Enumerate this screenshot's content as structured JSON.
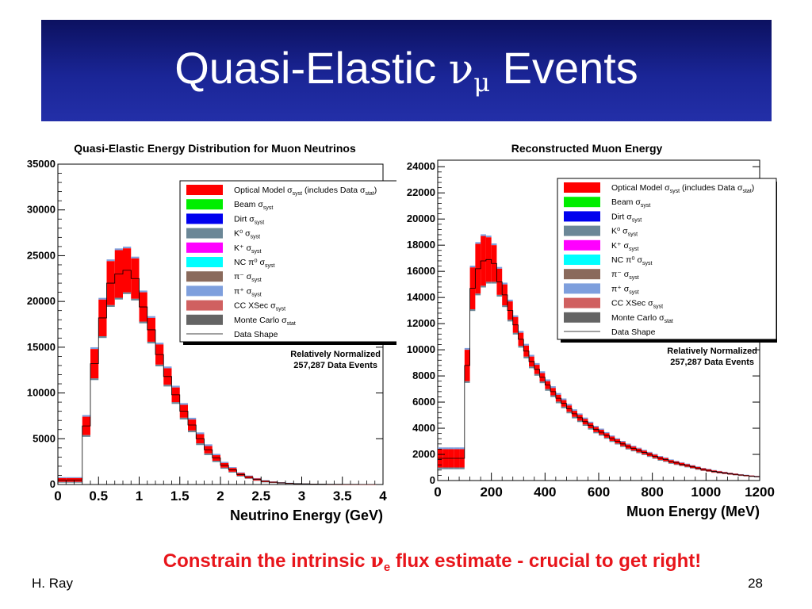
{
  "slide": {
    "title_prefix": "Quasi-Elastic ",
    "title_nu": "ν",
    "title_mu": "μ",
    "title_suffix": " Events",
    "caption_prefix": "Constrain the intrinsic ",
    "caption_nu": "ν",
    "caption_e": "e",
    "caption_suffix": " flux estimate - crucial to get right!",
    "author": "H. Ray",
    "page_number": "28",
    "colors": {
      "title_bar": "#1a2596",
      "caption": "#e8151b"
    }
  },
  "legend": {
    "entries": [
      {
        "label": "Optical Model σ",
        "sub": "syst",
        "extra": " (includes Data σ",
        "extra_sub": "stat",
        "extra_end": ")",
        "color": "#ff0000"
      },
      {
        "label": "Beam σ",
        "sub": "syst",
        "color": "#00ee00"
      },
      {
        "label": "Dirt σ",
        "sub": "syst",
        "color": "#0000ee"
      },
      {
        "label": "K⁰ σ",
        "sub": "syst",
        "color": "#6b8797"
      },
      {
        "label": "K⁺ σ",
        "sub": "syst",
        "color": "#ff00ff"
      },
      {
        "label": "NC π⁰ σ",
        "sub": "syst",
        "color": "#00ffff"
      },
      {
        "label": "π⁻ σ",
        "sub": "syst",
        "color": "#8a6a5c"
      },
      {
        "label": "π⁺ σ",
        "sub": "syst",
        "color": "#7e9fdd"
      },
      {
        "label": "CC XSec σ",
        "sub": "syst",
        "color": "#d06060"
      },
      {
        "label": "Monte Carlo σ",
        "sub": "stat",
        "color": "#646464"
      },
      {
        "label": "Data Shape",
        "sub": "",
        "color": "line"
      }
    ],
    "norm_line1": "Relatively Normalized",
    "norm_line2": "257,287 Data Events"
  },
  "chart_data": [
    {
      "type": "area",
      "title": "Quasi-Elastic Energy Distribution for Muon Neutrinos",
      "xlabel": "Neutrino Energy (GeV)",
      "ylabel": "",
      "xlim": [
        0,
        4
      ],
      "ylim": [
        0,
        35000
      ],
      "xticks": [
        "0",
        "0.5",
        "1",
        "1.5",
        "2",
        "2.5",
        "3",
        "3.5",
        "4"
      ],
      "xtick_values": [
        0,
        0.5,
        1,
        1.5,
        2,
        2.5,
        3,
        3.5,
        4
      ],
      "yticks": [
        "0",
        "5000",
        "10000",
        "15000",
        "20000",
        "25000",
        "30000",
        "35000"
      ],
      "ytick_values": [
        0,
        5000,
        10000,
        15000,
        20000,
        25000,
        30000,
        35000
      ],
      "bin_width": 0.1,
      "x": [
        0,
        0.1,
        0.2,
        0.3,
        0.4,
        0.5,
        0.6,
        0.7,
        0.8,
        0.9,
        1.0,
        1.1,
        1.2,
        1.3,
        1.4,
        1.5,
        1.6,
        1.7,
        1.8,
        1.9,
        2.0,
        2.1,
        2.2,
        2.3,
        2.4,
        2.5,
        2.6,
        2.7,
        2.8,
        2.9,
        3.0,
        3.1,
        3.2,
        3.3,
        3.4,
        3.5,
        3.6,
        3.7,
        3.8,
        3.9
      ],
      "series": [
        {
          "name": "Data Shape",
          "values": [
            500,
            500,
            500,
            6400,
            13200,
            18200,
            22000,
            23000,
            23400,
            22500,
            19400,
            16900,
            14200,
            11800,
            9800,
            8000,
            6500,
            5000,
            3800,
            2900,
            2100,
            1600,
            1100,
            800,
            550,
            350,
            250,
            180,
            130,
            90,
            70,
            50,
            40,
            30,
            25,
            20,
            15,
            12,
            10,
            8
          ]
        },
        {
          "name": "Optical Model σsyst (includes Data σstat)",
          "values": [
            200,
            200,
            200,
            1000,
            1600,
            2000,
            2400,
            2600,
            2400,
            2200,
            1600,
            1300,
            1100,
            900,
            800,
            700,
            600,
            500,
            400,
            300,
            250,
            200,
            150,
            120,
            100,
            80,
            60,
            50,
            40,
            30,
            25,
            20,
            15,
            12,
            10,
            8,
            6,
            5,
            4,
            3
          ]
        }
      ]
    },
    {
      "type": "area",
      "title": "Reconstructed Muon Energy",
      "xlabel": "Muon Energy (MeV)",
      "ylabel": "",
      "xlim": [
        0,
        1200
      ],
      "ylim": [
        0,
        24500
      ],
      "xticks": [
        "0",
        "200",
        "400",
        "600",
        "800",
        "1000",
        "1200"
      ],
      "xtick_values": [
        0,
        200,
        400,
        600,
        800,
        1000,
        1200
      ],
      "yticks": [
        "0",
        "2000",
        "4000",
        "6000",
        "8000",
        "10000",
        "12000",
        "14000",
        "16000",
        "18000",
        "20000",
        "22000",
        "24000"
      ],
      "ytick_values": [
        0,
        2000,
        4000,
        6000,
        8000,
        10000,
        12000,
        14000,
        16000,
        18000,
        20000,
        22000,
        24000
      ],
      "bin_width": 20,
      "x": [
        0,
        20,
        40,
        60,
        80,
        100,
        120,
        140,
        160,
        180,
        200,
        220,
        240,
        260,
        280,
        300,
        320,
        340,
        360,
        380,
        400,
        420,
        440,
        460,
        480,
        500,
        520,
        540,
        560,
        580,
        600,
        620,
        640,
        660,
        680,
        700,
        720,
        740,
        760,
        780,
        800,
        820,
        840,
        860,
        880,
        900,
        920,
        940,
        960,
        980,
        1000,
        1020,
        1040,
        1060,
        1080,
        1100,
        1120,
        1140,
        1160,
        1180
      ],
      "series": [
        {
          "name": "Data Shape",
          "values": [
            1700,
            1700,
            1700,
            1700,
            1700,
            8800,
            14700,
            16200,
            16800,
            16900,
            16600,
            15200,
            14200,
            13000,
            11900,
            10800,
            9900,
            9100,
            8500,
            7900,
            7300,
            6800,
            6300,
            5900,
            5500,
            5100,
            4800,
            4500,
            4200,
            3900,
            3700,
            3450,
            3200,
            3000,
            2800,
            2600,
            2450,
            2300,
            2150,
            2000,
            1850,
            1700,
            1600,
            1450,
            1350,
            1250,
            1150,
            1050,
            950,
            850,
            780,
            700,
            640,
            580,
            520,
            470,
            420,
            380,
            340,
            300
          ]
        },
        {
          "name": "Optical Model σsyst (includes Data σstat)",
          "values": [
            700,
            700,
            700,
            700,
            700,
            1200,
            1600,
            1900,
            1900,
            1700,
            1400,
            1000,
            800,
            700,
            600,
            500,
            420,
            380,
            350,
            320,
            300,
            280,
            260,
            250,
            240,
            230,
            220,
            210,
            200,
            190,
            180,
            170,
            165,
            160,
            155,
            150,
            145,
            140,
            135,
            130,
            125,
            120,
            115,
            110,
            105,
            100,
            95,
            90,
            85,
            80,
            75,
            70,
            65,
            60,
            55,
            50,
            45,
            42,
            40,
            38
          ]
        }
      ]
    }
  ]
}
